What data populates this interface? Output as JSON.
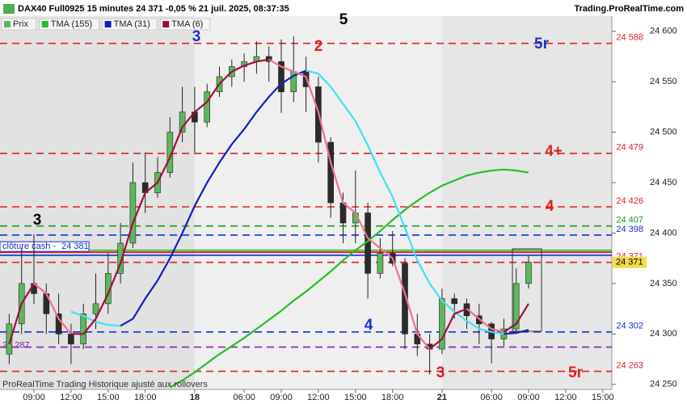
{
  "header": {
    "title": "DAX40 Full0925 15 minutes 24 371 -0,05 % 21 juil. 2025, 08:37:35",
    "site": "Trading.ProRealTime.com"
  },
  "footer": "ProRealTime Trading  Historique ajusté aux rollovers",
  "chart_data": {
    "type": "candlestick",
    "categories": [
      null,
      null,
      "09:00",
      null,
      null,
      "12:00",
      null,
      null,
      "15:00",
      null,
      null,
      "18:00",
      null,
      null,
      null,
      "18",
      null,
      null,
      null,
      "06:00",
      null,
      null,
      "09:00",
      null,
      null,
      "12:00",
      null,
      null,
      "15:00",
      null,
      null,
      "18:00",
      null,
      null,
      null,
      "21",
      null,
      null,
      null,
      "06:00",
      null,
      null,
      "09:00",
      null,
      null,
      "12:00",
      null,
      null,
      "15:00",
      null
    ],
    "ylim": [
      24245,
      24615
    ],
    "yticks": [
      {
        "value": 24250,
        "label": "24 250"
      },
      {
        "value": 24300,
        "label": "24 300"
      },
      {
        "value": 24350,
        "label": "24 350"
      },
      {
        "value": 24400,
        "label": "24 400"
      },
      {
        "value": 24450,
        "label": "24 450"
      },
      {
        "value": 24500,
        "label": "24 500"
      },
      {
        "value": 24550,
        "label": "24 550"
      },
      {
        "value": 24600,
        "label": "24 600"
      }
    ],
    "series": [
      {
        "name": "Prix",
        "color": "#5cb85c",
        "down_color": "#2b2b2b",
        "open": [
          24280,
          24310,
          24350,
          24340,
          24320,
          24300,
          24290,
          24320,
          24330,
          24360,
          24390,
          24450,
          24440,
          24460,
          24500,
          24520,
          24510,
          24540,
          24555,
          24565,
          24570,
          24575,
          24570,
          24540,
          24560,
          24545,
          24490,
          24430,
          24410,
          24420,
          24360,
          24380,
          24370,
          24300,
          24290,
          24285,
          24335,
          24330,
          24318,
          24310,
          24295,
          24305,
          24350,
          null,
          null,
          null,
          null,
          null,
          null,
          null
        ],
        "high": [
          24320,
          24385,
          24399,
          24350,
          24340,
          24310,
          24330,
          24360,
          24380,
          24410,
          24470,
          24480,
          24475,
          24515,
          24545,
          24545,
          24548,
          24565,
          24572,
          24578,
          24590,
          24585,
          24592,
          24595,
          24575,
          24555,
          24495,
          24440,
          24462,
          24430,
          24395,
          24402,
          24375,
          24320,
          24300,
          24345,
          24340,
          24335,
          24330,
          24312,
          24315,
          24365,
          24378,
          null,
          null,
          null,
          null,
          null,
          null,
          null
        ],
        "low": [
          24270,
          24300,
          24330,
          24300,
          24290,
          24270,
          24285,
          24305,
          24320,
          24350,
          24385,
          24420,
          24435,
          24455,
          24490,
          24480,
          24505,
          24535,
          24545,
          24550,
          24558,
          24550,
          24519,
          24530,
          24520,
          24470,
          24415,
          24390,
          24390,
          24335,
          24355,
          24367,
          24285,
          24278,
          24260,
          24280,
          24315,
          24305,
          24290,
          24271,
          24288,
          24300,
          24345,
          null,
          null,
          null,
          null,
          null,
          null,
          null
        ],
        "close": [
          24310,
          24350,
          24340,
          24320,
          24300,
          24290,
          24320,
          24330,
          24360,
          24390,
          24450,
          24440,
          24460,
          24500,
          24520,
          24510,
          24540,
          24555,
          24565,
          24570,
          24575,
          24570,
          24540,
          24560,
          24545,
          24490,
          24430,
          24410,
          24420,
          24360,
          24380,
          24370,
          24300,
          24290,
          24285,
          24335,
          24330,
          24318,
          24310,
          24295,
          24305,
          24350,
          24371,
          null,
          null,
          null,
          null,
          null,
          null,
          null
        ]
      },
      {
        "name": "TMA (155)",
        "color": "#22c022",
        "values": [
          null,
          null,
          null,
          null,
          null,
          null,
          null,
          null,
          null,
          null,
          null,
          null,
          null,
          24247,
          24254,
          24262,
          24271,
          24280,
          24288,
          24296,
          24305,
          24314,
          24323,
          24333,
          24342,
          24352,
          24362,
          24373,
          24383,
          24392,
          24402,
          24413,
          24423,
          24432,
          24440,
          24447,
          24452,
          24457,
          24460,
          24462,
          24463,
          24462,
          24460,
          null,
          null,
          null,
          null,
          null,
          null,
          null
        ]
      },
      {
        "name": "TMA (31)",
        "color": "#1020c0",
        "falling_color": "#40e0f0",
        "values": [
          null,
          null,
          null,
          null,
          null,
          24322,
          24318,
          24312,
          24309,
          24308,
          24315,
          24335,
          24353,
          24375,
          24400,
          24427,
          24450,
          24470,
          24488,
          24503,
          24520,
          24535,
          24548,
          24556,
          24561,
          24558,
          24545,
          24528,
          24511,
          24487,
          24460,
          24436,
          24405,
          24373,
          24350,
          24333,
          24322,
          24313,
          24305,
          24302,
          24300,
          24301,
          24304,
          null,
          null,
          null,
          null,
          null,
          null,
          null
        ]
      },
      {
        "name": "TMA (6)",
        "color": "#a0103a",
        "falling_color": "#f07090",
        "values": [
          24290,
          24330,
          24350,
          24340,
          24315,
          24300,
          24300,
          24315,
          24340,
          24370,
          24410,
          24440,
          24450,
          24475,
          24505,
          24520,
          24530,
          24548,
          24560,
          24566,
          24570,
          24572,
          24565,
          24560,
          24555,
          24520,
          24470,
          24430,
          24420,
          24395,
          24385,
          24375,
          24340,
          24300,
          24285,
          24295,
          24320,
          24325,
          24315,
          24305,
          24302,
          24310,
          24330,
          null,
          null,
          null,
          null,
          null,
          null,
          null
        ]
      }
    ],
    "levels": [
      {
        "value": 24588,
        "label": "24 588",
        "color": "#e02020",
        "style": "dashed"
      },
      {
        "value": 24479,
        "label": "24 479",
        "color": "#e02020",
        "style": "dashed"
      },
      {
        "value": 24426,
        "label": "24 426",
        "color": "#e02020",
        "style": "dashed"
      },
      {
        "value": 24407,
        "label": "24 407",
        "color": "#1a9a1a",
        "style": "dashed"
      },
      {
        "value": 24398,
        "label": "24 398",
        "color": "#1030d0",
        "style": "dashed"
      },
      {
        "value": 24383,
        "color": "#22c022",
        "style": "solid"
      },
      {
        "value": 24378,
        "color": "#1030d0",
        "style": "solid"
      },
      {
        "value": 24371,
        "label": "24 371",
        "color": "#e02020",
        "style": "dashed"
      },
      {
        "value": 24302,
        "label": "24 302",
        "color": "#1030d0",
        "style": "dashed"
      },
      {
        "value": 24287,
        "label": "24 287",
        "color": "#8020b0",
        "style": "dashed",
        "side": "left"
      },
      {
        "value": 24263,
        "label": "24 263",
        "color": "#e02020",
        "style": "dashed"
      }
    ],
    "close_cash": {
      "text": "clôture cash - ",
      "value": 24381,
      "label": "24 381",
      "color": "#e02020"
    },
    "last_price": {
      "value": 24371,
      "label": "24 371",
      "color": "#f3dc4a"
    },
    "annotations": [
      {
        "text": "5",
        "color": "#000000"
      },
      {
        "text": "3",
        "color": "#1a2fd0"
      },
      {
        "text": "2",
        "color": "#e02020"
      },
      {
        "text": "5r",
        "color": "#1a2fd0"
      },
      {
        "text": "4+",
        "color": "#e02020"
      },
      {
        "text": "4",
        "color": "#e02020"
      },
      {
        "text": "3",
        "color": "#000000"
      },
      {
        "text": "4",
        "color": "#1a2fd0"
      },
      {
        "text": "3",
        "color": "#e02020"
      },
      {
        "text": "5r",
        "color": "#e02020"
      }
    ]
  }
}
